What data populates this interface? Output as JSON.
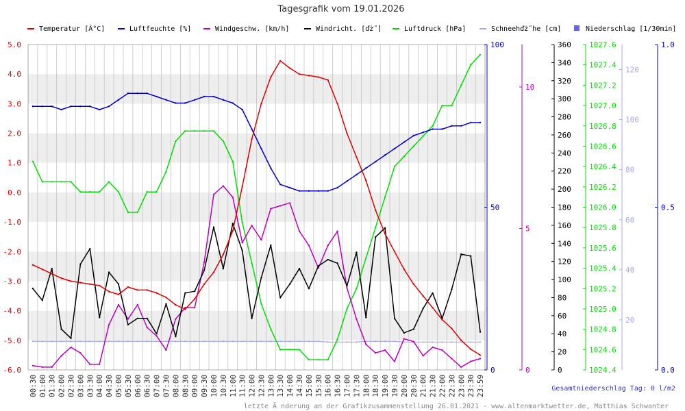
{
  "title": "Tagesgrafik vom 19.01.2026",
  "summary": "Gesamtniederschlag Tag: 0 l/m2",
  "footer": "letzte Ä nderung an der Grafikzusammenstellung 26.01.2021 - www.altenmarktwetter.de, Matthias Schwanter",
  "colors": {
    "temperature": "#dd0000",
    "humidity": "#0000cc",
    "wind_speed": "#bb00bb",
    "wind_direction": "#000000",
    "pressure": "#00dd00",
    "snow": "#aaaaee",
    "precipitation": "#6666dd",
    "band": "#eeeeee",
    "grid": "#bbbbbb"
  },
  "chart_data": {
    "type": "line",
    "title": "Tagesgrafik vom 19.01.2026",
    "x": [
      "00:30",
      "01:00",
      "01:30",
      "02:00",
      "02:30",
      "03:00",
      "03:30",
      "04:00",
      "04:30",
      "05:00",
      "05:30",
      "06:00",
      "06:30",
      "07:00",
      "07:30",
      "08:00",
      "08:30",
      "09:00",
      "09:30",
      "10:00",
      "10:30",
      "11:00",
      "11:30",
      "12:00",
      "12:30",
      "13:00",
      "13:30",
      "14:00",
      "14:30",
      "15:00",
      "15:30",
      "16:00",
      "16:30",
      "17:00",
      "17:30",
      "18:00",
      "18:30",
      "19:00",
      "19:30",
      "20:00",
      "20:30",
      "21:00",
      "21:30",
      "22:00",
      "22:30",
      "23:00",
      "23:30",
      "23:59"
    ],
    "grid": true,
    "legend_position": "top",
    "axes": [
      {
        "key": "temperature",
        "range": [
          -6,
          5
        ],
        "ticks": [
          "-6.0",
          "-5.0",
          "-4.0",
          "-3.0",
          "-2.0",
          "-1.0",
          "0.0",
          "1.0",
          "2.0",
          "3.0",
          "4.0",
          "5.0"
        ],
        "position": "left"
      },
      {
        "key": "humidity",
        "range": [
          0,
          100
        ],
        "ticks": [
          "0",
          "50",
          "100"
        ],
        "position": "right"
      },
      {
        "key": "wind_speed",
        "range": [
          0,
          11.5
        ],
        "ticks": [
          "0",
          "5",
          "10"
        ],
        "position": "right"
      },
      {
        "key": "wind_direction",
        "range": [
          0,
          360
        ],
        "ticks": [
          "0",
          "20",
          "40",
          "60",
          "80",
          "100",
          "120",
          "140",
          "160",
          "180",
          "200",
          "220",
          "240",
          "260",
          "280",
          "300",
          "320",
          "340",
          "360"
        ],
        "position": "right"
      },
      {
        "key": "pressure",
        "range": [
          1024.4,
          1027.6
        ],
        "ticks": [
          "1024.4",
          "1024.6",
          "1024.8",
          "1025.0",
          "1025.2",
          "1025.4",
          "1025.6",
          "1025.8",
          "1026.0",
          "1026.2",
          "1026.4",
          "1026.6",
          "1026.8",
          "1027.0",
          "1027.2",
          "1027.4",
          "1027.6"
        ],
        "position": "right"
      },
      {
        "key": "snow",
        "range": [
          0,
          130
        ],
        "ticks": [
          "20",
          "40",
          "60",
          "80",
          "100",
          "120"
        ],
        "position": "right"
      },
      {
        "key": "precipitation",
        "range": [
          0,
          1
        ],
        "ticks": [
          "0.0",
          "0.5",
          "1.0"
        ],
        "position": "right"
      }
    ],
    "series": [
      {
        "key": "temperature",
        "name": "Temperatur [Â°C]",
        "axis": "temperature",
        "values": [
          -2.45,
          -2.6,
          -2.75,
          -2.9,
          -3.0,
          -3.05,
          -3.1,
          -3.15,
          -3.35,
          -3.45,
          -3.2,
          -3.3,
          -3.3,
          -3.4,
          -3.55,
          -3.8,
          -3.95,
          -3.6,
          -3.1,
          -2.7,
          -2.1,
          -1.3,
          0.2,
          1.8,
          3.0,
          3.9,
          4.45,
          4.2,
          4.0,
          3.95,
          3.9,
          3.8,
          3.0,
          2.0,
          1.2,
          0.4,
          -0.6,
          -1.4,
          -2.0,
          -2.6,
          -3.1,
          -3.5,
          -3.9,
          -4.3,
          -4.6,
          -5.0,
          -5.3,
          -5.5
        ]
      },
      {
        "key": "humidity",
        "name": "Luftfeuchte [%]",
        "axis": "humidity",
        "values": [
          81,
          81,
          81,
          80,
          81,
          81,
          81,
          80,
          81,
          83,
          85,
          85,
          85,
          84,
          83,
          82,
          82,
          83,
          84,
          84,
          83,
          82,
          80,
          74,
          68,
          62,
          57,
          56,
          55,
          55,
          55,
          55,
          56,
          58,
          60,
          62,
          64,
          66,
          68,
          70,
          72,
          73,
          74,
          74,
          75,
          75,
          76,
          76
        ]
      },
      {
        "key": "wind_speed",
        "name": "Windgeschw. [km/h]",
        "axis": "wind_speed",
        "values": [
          0.15,
          0.1,
          0.1,
          0.5,
          0.8,
          0.6,
          0.2,
          0.2,
          1.6,
          2.3,
          1.8,
          2.3,
          1.5,
          1.2,
          0.7,
          1.8,
          2.2,
          2.2,
          3.8,
          6.2,
          6.5,
          6.1,
          4.5,
          5.1,
          4.6,
          5.7,
          5.8,
          5.9,
          4.9,
          4.4,
          3.6,
          4.4,
          4.9,
          2.9,
          1.8,
          0.9,
          0.6,
          0.7,
          0.3,
          1.1,
          1.0,
          0.5,
          0.8,
          0.7,
          0.4,
          0.1,
          0.3,
          0.4
        ]
      },
      {
        "key": "wind_direction",
        "name": "Windricht. [ďż˝]",
        "axis": "wind_direction",
        "values": [
          90,
          77,
          112,
          45,
          35,
          117,
          134,
          58,
          108,
          95,
          50,
          57,
          57,
          40,
          73,
          37,
          85,
          87,
          110,
          158,
          112,
          162,
          132,
          57,
          102,
          138,
          80,
          95,
          112,
          90,
          115,
          122,
          118,
          93,
          130,
          58,
          147,
          157,
          57,
          41,
          45,
          68,
          85,
          57,
          89,
          128,
          126,
          42
        ]
      },
      {
        "key": "pressure",
        "name": "Luftdruck [hPa]",
        "axis": "pressure",
        "values": [
          1026.45,
          1026.25,
          1026.25,
          1026.25,
          1026.25,
          1026.15,
          1026.15,
          1026.15,
          1026.25,
          1026.15,
          1025.95,
          1025.95,
          1026.15,
          1026.15,
          1026.35,
          1026.65,
          1026.75,
          1026.75,
          1026.75,
          1026.75,
          1026.65,
          1026.45,
          1025.85,
          1025.45,
          1025.05,
          1024.8,
          1024.6,
          1024.6,
          1024.6,
          1024.5,
          1024.5,
          1024.5,
          1024.7,
          1025.0,
          1025.2,
          1025.5,
          1025.8,
          1026.1,
          1026.4,
          1026.5,
          1026.6,
          1026.7,
          1026.8,
          1027.0,
          1027.0,
          1027.2,
          1027.4,
          1027.5
        ]
      },
      {
        "key": "snow",
        "name": "Schneehďż˝he [cm]",
        "axis": "snow",
        "values": [
          11.4,
          11.4,
          11.4,
          11.4,
          11.4,
          11.4,
          11.4,
          11.4,
          11.4,
          11.4,
          11.4,
          11.4,
          11.4,
          11.4,
          11.4,
          11.4,
          11.4,
          11.4,
          11.4,
          11.4,
          11.4,
          11.4,
          11.4,
          11.4,
          11.4,
          11.4,
          11.4,
          11.4,
          11.4,
          11.4,
          11.4,
          11.1,
          11.1,
          11.1,
          11.1,
          11.4,
          11.4,
          11.4,
          11.4,
          11.1,
          11.1,
          11.1,
          11.1,
          11.1,
          11.1,
          11.1,
          11.1,
          11.1
        ]
      },
      {
        "key": "precipitation",
        "name": "Niederschlag [1/30min]",
        "axis": "precipitation",
        "values": [
          0,
          0,
          0,
          0,
          0,
          0,
          0,
          0,
          0,
          0,
          0,
          0,
          0,
          0,
          0,
          0,
          0,
          0,
          0,
          0,
          0,
          0,
          0,
          0,
          0,
          0,
          0,
          0,
          0,
          0,
          0,
          0,
          0,
          0,
          0,
          0,
          0,
          0,
          0,
          0,
          0,
          0,
          0,
          0,
          0,
          0,
          0,
          0
        ]
      }
    ]
  }
}
